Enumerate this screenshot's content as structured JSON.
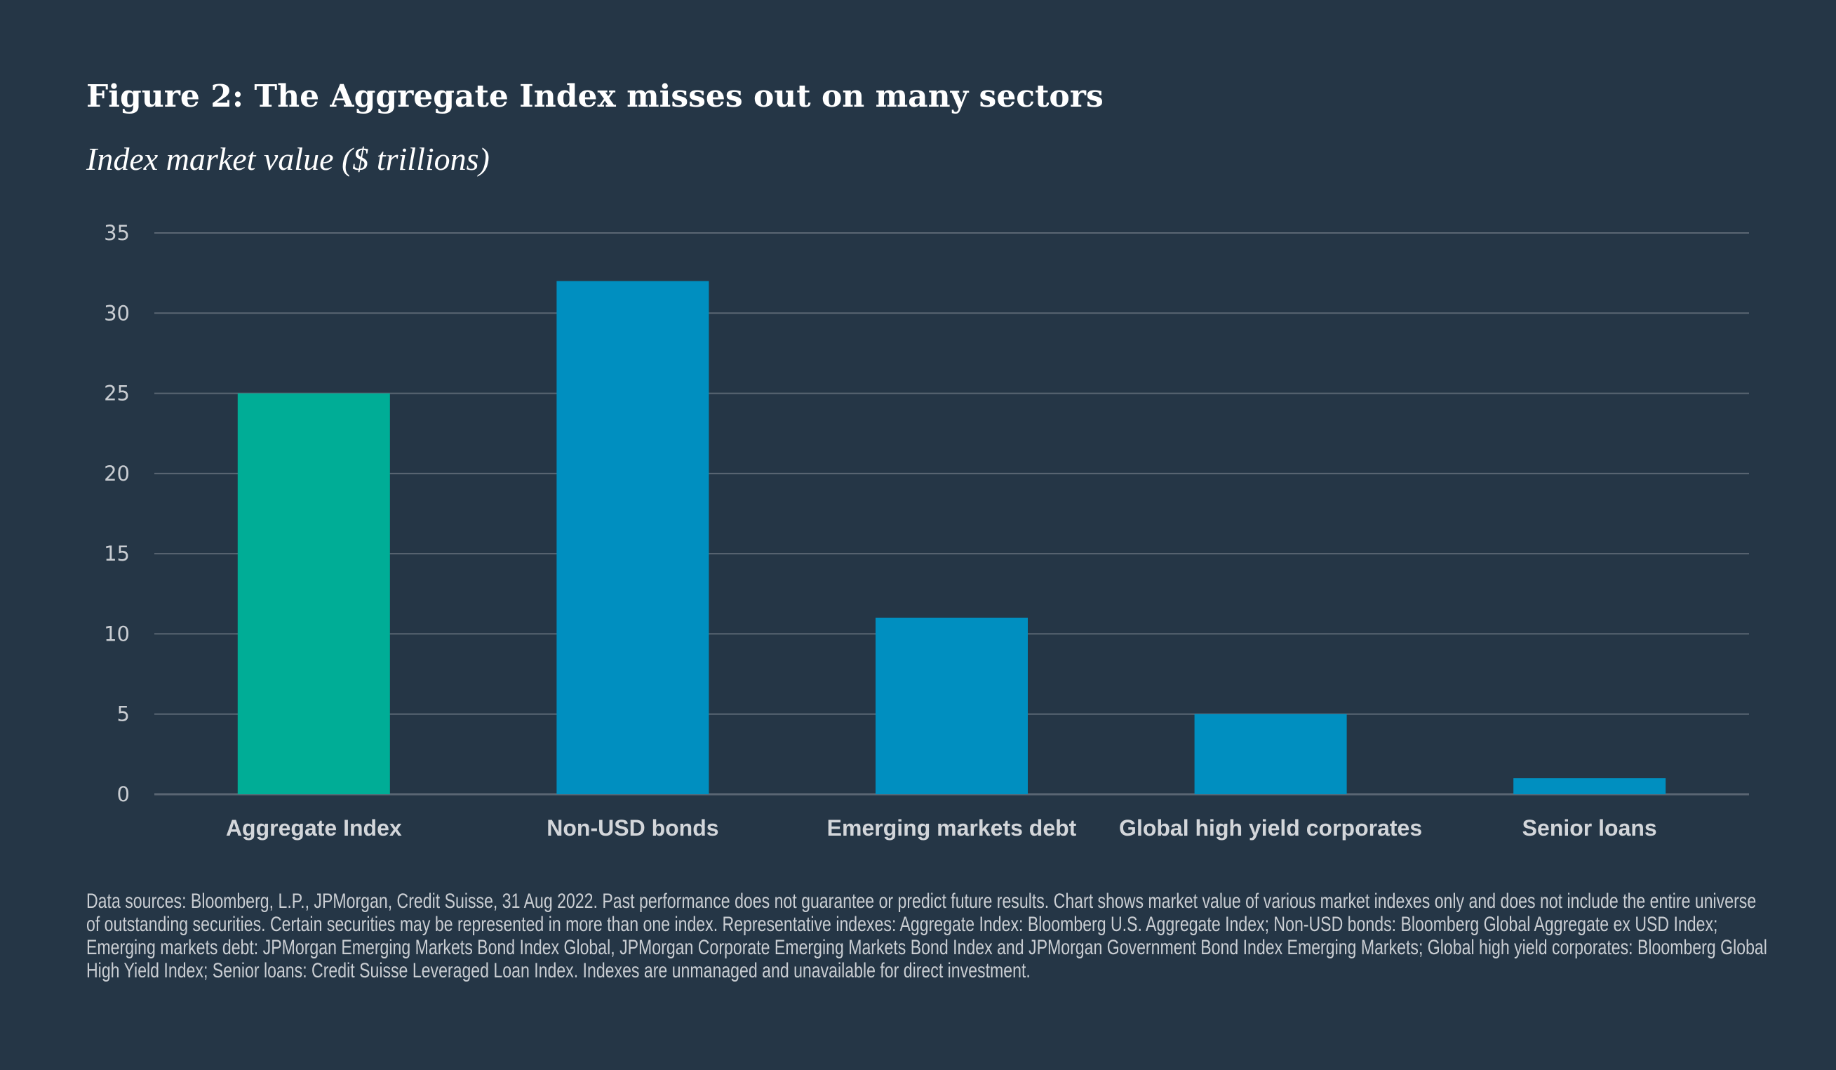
{
  "title": "Figure 2: The Aggregate Index misses out on many sectors",
  "subtitle": "Index market value ($ trillions)",
  "footnote": "Data sources: Bloomberg, L.P., JPMorgan, Credit Suisse, 31 Aug 2022. Past performance does not guarantee or predict future results. Chart shows market value of various market indexes only and does not include the entire universe of outstanding securities. Certain securities may be represented in more than one index. Representative indexes: Aggregate Index: Bloomberg U.S. Aggregate Index; Non-USD bonds: Bloomberg Global Aggregate ex USD Index; Emerging markets debt: JPMorgan Emerging Markets Bond Index Global, JPMorgan Corporate Emerging Markets Bond Index and JPMorgan Government Bond Index Emerging Markets; Global high yield corporates: Bloomberg Global High Yield Index; Senior loans: Credit Suisse Leveraged Loan Index. Indexes are unmanaged and unavailable for direct investment.",
  "colors": {
    "background": "#253646",
    "highlight": "#00ad96",
    "bar": "#008fc0",
    "grid": "#5a6673"
  },
  "chart_data": {
    "type": "bar",
    "categories": [
      "Aggregate Index",
      "Non-USD bonds",
      "Emerging markets debt",
      "Global high yield corporates",
      "Senior loans"
    ],
    "values": [
      25,
      32,
      11,
      5,
      1
    ],
    "bar_colors": [
      "#00ad96",
      "#008fc0",
      "#008fc0",
      "#008fc0",
      "#008fc0"
    ],
    "ylabel": "Index market value ($ trillions)",
    "ylim": [
      0,
      35
    ],
    "yticks": [
      0,
      5,
      10,
      15,
      20,
      25,
      30,
      35
    ],
    "grid": true
  }
}
